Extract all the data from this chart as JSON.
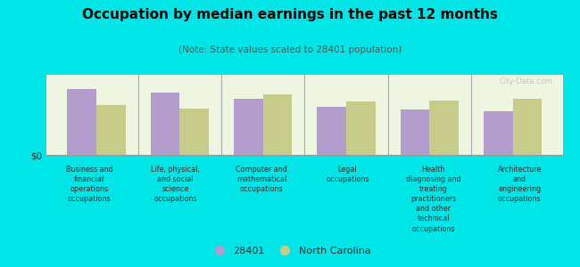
{
  "title": "Occupation by median earnings in the past 12 months",
  "subtitle": "(Note: State values scaled to 28401 population)",
  "categories": [
    "Business and\nfinancial\noperations\noccupations",
    "Life, physical,\nand social\nscience\noccupations",
    "Computer and\nmathematical\noccupations",
    "Legal\noccupations",
    "Health\ndiagnosing and\ntreating\npractitioners\nand other\ntechnical\noccupations",
    "Architecture\nand\nengineering\noccupations"
  ],
  "values_28401": [
    0.82,
    0.78,
    0.7,
    0.6,
    0.57,
    0.55
  ],
  "values_nc": [
    0.62,
    0.58,
    0.76,
    0.67,
    0.68,
    0.7
  ],
  "color_28401": "#b39dcc",
  "color_nc": "#c8cc8a",
  "background_outer": "#00e5e5",
  "background_chart": "#eef5e0",
  "ylabel": "$0",
  "legend_28401": "28401",
  "legend_nc": "North Carolina",
  "bar_width": 0.35,
  "watermark": "City-Data.com"
}
